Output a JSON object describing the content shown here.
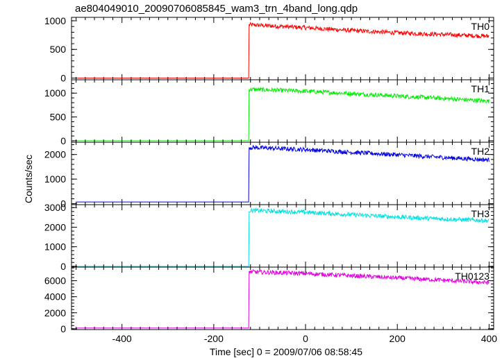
{
  "chart_data": {
    "type": "line",
    "title": "ae804049010_20090706085845_wam3_trn_4band_long.qdp",
    "xlabel": "Time [sec] 0 = 2009/07/06 08:58:45",
    "ylabel": "Counts/sec",
    "xlim": [
      -510,
      410
    ],
    "x_ticks": [
      -400,
      -200,
      0,
      200,
      400
    ],
    "grid": false,
    "panels": [
      {
        "name": "TH0",
        "color": "#ff0000",
        "ylim": [
          -30,
          1060
        ],
        "y_ticks": [
          0,
          500,
          1000
        ],
        "x": [
          -500,
          -124,
          -123,
          0,
          100,
          200,
          300,
          400
        ],
        "y": [
          0,
          0,
          930,
          880,
          830,
          790,
          760,
          730
        ]
      },
      {
        "name": "TH1",
        "color": "#00ee00",
        "ylim": [
          -30,
          1280
        ],
        "y_ticks": [
          0,
          500,
          1000
        ],
        "x": [
          -500,
          -124,
          -123,
          0,
          100,
          200,
          300,
          400
        ],
        "y": [
          0,
          0,
          1080,
          1040,
          990,
          940,
          890,
          830
        ]
      },
      {
        "name": "TH2",
        "color": "#0000e0",
        "ylim": [
          -40,
          2500
        ],
        "y_ticks": [
          0,
          1000,
          2000
        ],
        "x": [
          -500,
          -124,
          -123,
          0,
          100,
          200,
          300,
          400
        ],
        "y": [
          70,
          70,
          2290,
          2200,
          2090,
          1990,
          1880,
          1780
        ]
      },
      {
        "name": "TH3",
        "color": "#00e0e0",
        "ylim": [
          -40,
          3150
        ],
        "y_ticks": [
          0,
          1000,
          2000,
          3000
        ],
        "x": [
          -500,
          -124,
          -123,
          0,
          100,
          200,
          300,
          400
        ],
        "y": [
          0,
          0,
          2860,
          2760,
          2640,
          2520,
          2420,
          2330
        ]
      },
      {
        "name": "TH0123",
        "color": "#e000e0",
        "ylim": [
          -100,
          7700
        ],
        "y_ticks": [
          0,
          2000,
          4000,
          6000
        ],
        "x": [
          -500,
          -124,
          -123,
          0,
          100,
          200,
          300,
          400
        ],
        "y": [
          100,
          100,
          7120,
          6900,
          6620,
          6350,
          6070,
          5750
        ]
      }
    ]
  }
}
